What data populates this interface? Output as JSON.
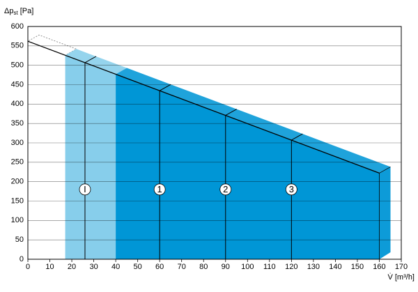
{
  "chart_data": {
    "type": "area",
    "y_label": "Δp",
    "y_label_sub": "st",
    "y_label_unit": "[Pa]",
    "x_label": "V̇ [m³/h]",
    "xlim": [
      0,
      170
    ],
    "xticks": [
      0,
      10,
      20,
      30,
      40,
      50,
      60,
      70,
      80,
      90,
      100,
      110,
      120,
      130,
      140,
      150,
      160,
      170
    ],
    "ylim": [
      0,
      600
    ],
    "yticks": [
      0,
      50,
      100,
      150,
      200,
      250,
      300,
      350,
      400,
      450,
      500,
      550,
      600
    ],
    "grid": true,
    "curve": {
      "x": [
        0,
        160
      ],
      "y": [
        562,
        222
      ]
    },
    "zones": [
      {
        "x": [
          17,
          40
        ],
        "color": "#87ceeb"
      },
      {
        "x": [
          40,
          160
        ],
        "color": "#0096d6"
      }
    ],
    "markers": [
      {
        "label": "I",
        "x": 26
      },
      {
        "label": "1",
        "x": 60
      },
      {
        "label": "2",
        "x": 90
      },
      {
        "label": "3",
        "x": 120
      }
    ],
    "marker_y": 180
  }
}
